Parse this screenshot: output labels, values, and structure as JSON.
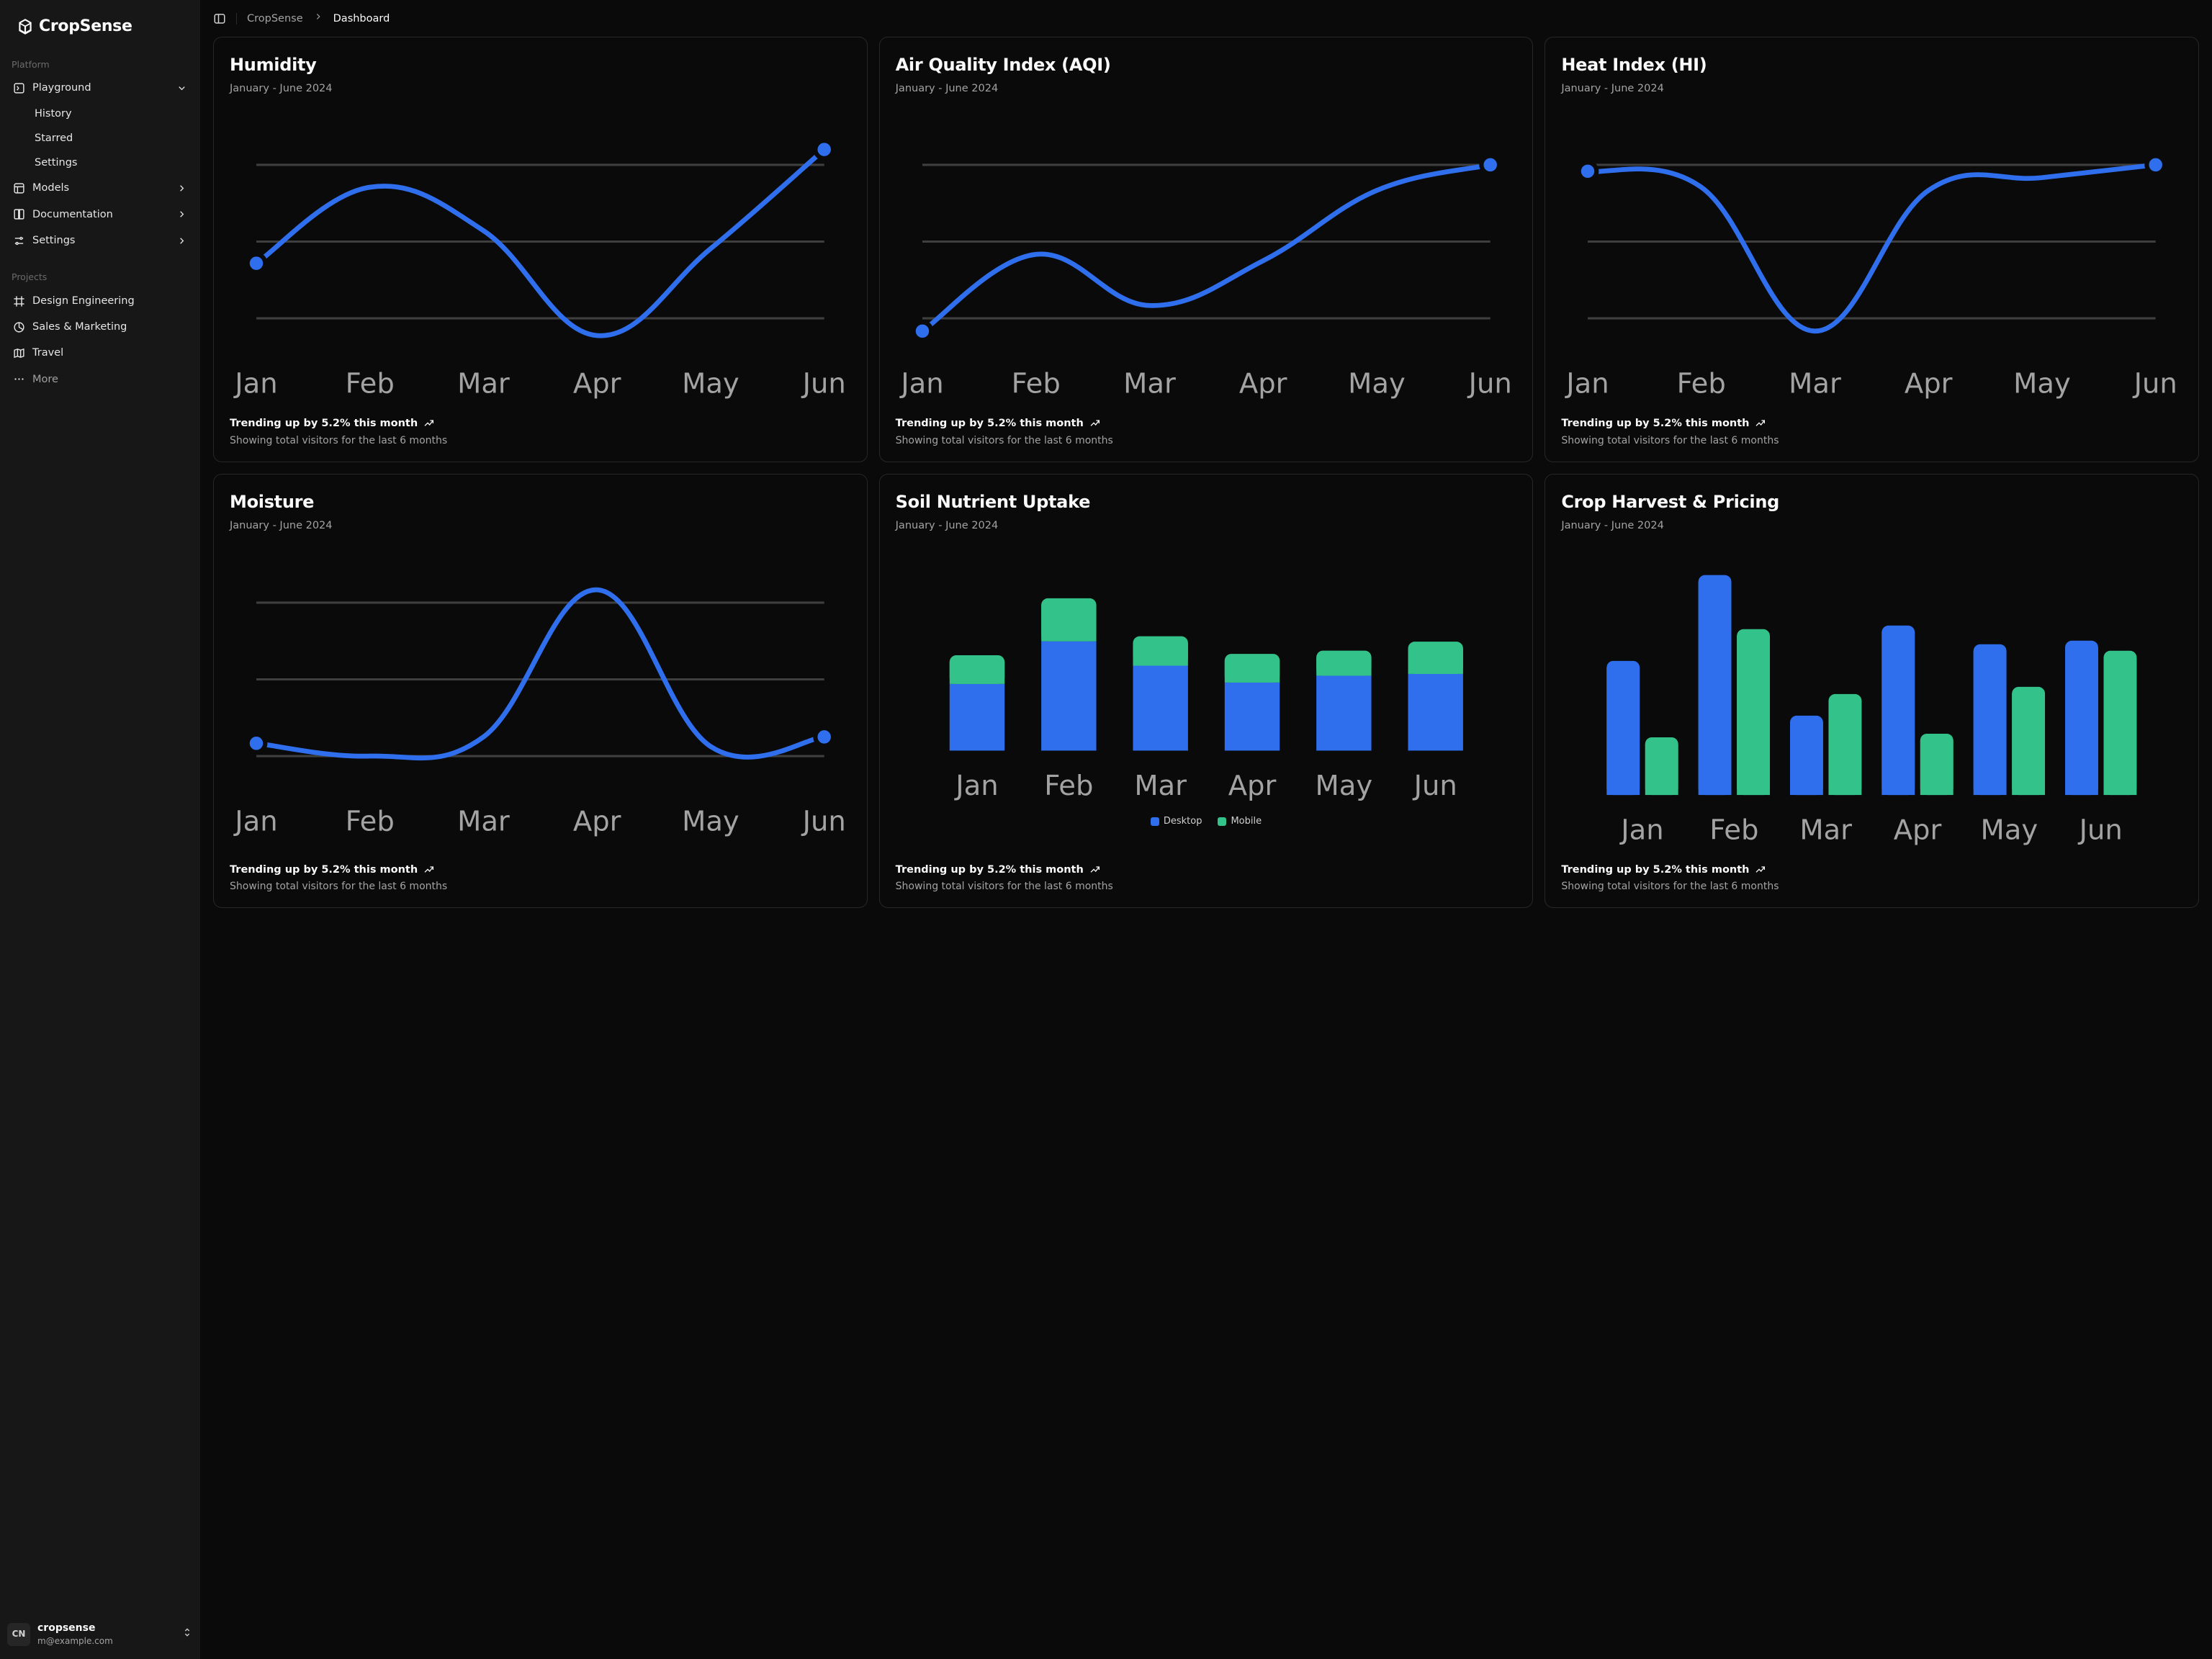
{
  "app": {
    "name": "CropSense"
  },
  "breadcrumb": {
    "root": "CropSense",
    "page": "Dashboard"
  },
  "sidebar": {
    "sections": [
      {
        "label": "Platform"
      },
      {
        "label": "Projects"
      }
    ],
    "platform": [
      {
        "label": "Playground",
        "icon": "playground",
        "expanded": true,
        "children": [
          {
            "label": "History"
          },
          {
            "label": "Starred"
          },
          {
            "label": "Settings"
          }
        ]
      },
      {
        "label": "Models",
        "icon": "models"
      },
      {
        "label": "Documentation",
        "icon": "book"
      },
      {
        "label": "Settings",
        "icon": "sliders"
      }
    ],
    "projects": [
      {
        "label": "Design Engineering",
        "icon": "frame"
      },
      {
        "label": "Sales & Marketing",
        "icon": "pie"
      },
      {
        "label": "Travel",
        "icon": "map"
      },
      {
        "label": "More",
        "icon": "dots"
      }
    ]
  },
  "user": {
    "initials": "CN",
    "name": "cropsense",
    "email": "m@example.com"
  },
  "colors": {
    "line": "#2f6fed",
    "desktop": "#2f6fed",
    "mobile": "#34c28b",
    "grid": "#3f3f3f",
    "axis_label": "#a3a3a3",
    "card_border": "#272727",
    "bg": "#0a0a0a"
  },
  "months": [
    "Jan",
    "Feb",
    "Mar",
    "Apr",
    "May",
    "Jun"
  ],
  "cards": {
    "humidity": {
      "title": "Humidity",
      "subtitle": "January - June 2024",
      "trend": "Trending up by 5.2% this month",
      "desc": "Showing total visitors for the last 6 months",
      "type": "line",
      "yrange": [
        60,
        400
      ],
      "gridlines": [
        100,
        220,
        340
      ],
      "values": [
        186,
        305,
        237,
        73,
        209,
        364
      ]
    },
    "aqi": {
      "title": "Air Quality Index (AQI)",
      "subtitle": "January - June 2024",
      "trend": "Trending up by 5.2% this month",
      "desc": "Showing total visitors for the last 6 months",
      "type": "line",
      "yrange": [
        60,
        400
      ],
      "gridlines": [
        100,
        220,
        340
      ],
      "values": [
        80,
        200,
        120,
        190,
        300,
        340
      ]
    },
    "heat": {
      "title": "Heat Index (HI)",
      "subtitle": "January - June 2024",
      "trend": "Trending up by 5.2% this month",
      "desc": "Showing total visitors for the last 6 months",
      "type": "line",
      "yrange": [
        60,
        400
      ],
      "gridlines": [
        100,
        220,
        340
      ],
      "values": [
        330,
        305,
        80,
        300,
        320,
        340
      ]
    },
    "moisture": {
      "title": "Moisture",
      "subtitle": "January - June 2024",
      "trend": "Trending up by 5.2% this month",
      "desc": "Showing total visitors for the last 6 months",
      "type": "line",
      "yrange": [
        60,
        400
      ],
      "gridlines": [
        100,
        220,
        340
      ],
      "values": [
        120,
        100,
        130,
        360,
        115,
        130
      ]
    },
    "soil": {
      "title": "Soil Nutrient Uptake",
      "subtitle": "January - June 2024",
      "trend": "Trending up by 5.2% this month",
      "desc": "Showing total visitors for the last 6 months",
      "type": "stacked-bar",
      "legend": {
        "a": "Desktop",
        "b": "Mobile"
      },
      "ymax": 520,
      "bar_width": 0.6,
      "desktop": [
        186,
        305,
        237,
        190,
        209,
        214
      ],
      "mobile": [
        80,
        120,
        82,
        80,
        70,
        90
      ]
    },
    "harvest": {
      "title": "Crop Harvest & Pricing",
      "subtitle": "January - June 2024",
      "trend": "Trending up by 5.2% this month",
      "desc": "Showing total visitors for the last 6 months",
      "type": "grouped-bar",
      "ymax": 320,
      "bar_width": 0.36,
      "gap": 0.06,
      "desktop": [
        186,
        305,
        110,
        235,
        209,
        214
      ],
      "mobile": [
        80,
        230,
        140,
        85,
        150,
        200
      ]
    }
  }
}
